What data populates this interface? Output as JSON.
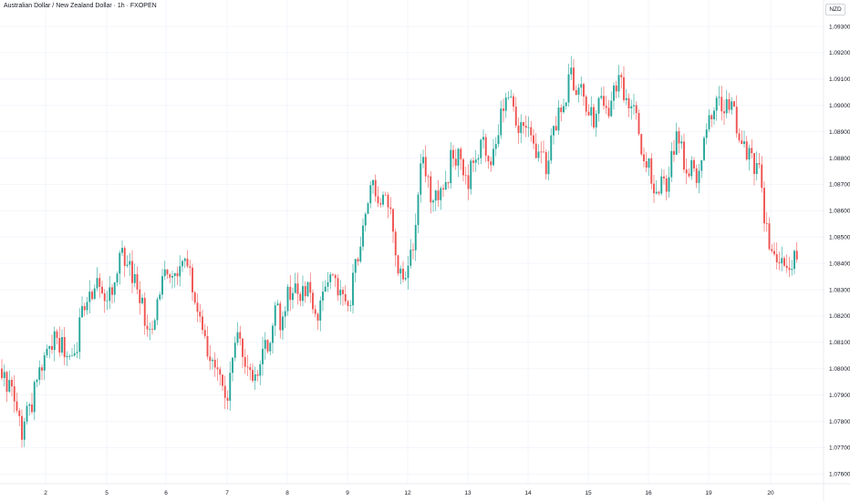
{
  "title": "Australian Dollar / New Zealand Dollar · 1h · FXOPEN",
  "currency": "NZD",
  "colors": {
    "up": "#26a69a",
    "down": "#ef5350",
    "grid": "#f0f3fa",
    "axis_text": "#131722"
  },
  "chart_data": {
    "type": "candlestick",
    "title": "Australian Dollar / New Zealand Dollar · 1h · FXOPEN",
    "ylim": [
      1.0755,
      1.0935
    ],
    "y_ticks": [
      1.093,
      1.092,
      1.091,
      1.09,
      1.089,
      1.088,
      1.087,
      1.086,
      1.085,
      1.084,
      1.083,
      1.082,
      1.081,
      1.08,
      1.079,
      1.078,
      1.077,
      1.076
    ],
    "y_tick_labels": [
      "1.09300",
      "1.09200",
      "1.09100",
      "1.09000",
      "1.08900",
      "1.08800",
      "1.08700",
      "1.08600",
      "1.08500",
      "1.08400",
      "1.08300",
      "1.08200",
      "1.08100",
      "1.08000",
      "1.07900",
      "1.07800",
      "1.07700",
      "1.07600"
    ],
    "x_tick_labels": [
      "2",
      "5",
      "6",
      "7",
      "8",
      "9",
      "12",
      "13",
      "14",
      "15",
      "16",
      "19",
      "20"
    ],
    "grid": true,
    "path_days": [
      {
        "label": "2",
        "closes": [
          1.0792,
          1.0776,
          1.0788,
          1.0801,
          1.0812,
          1.0808,
          1.0806,
          1.0826,
          1.0832,
          1.0824
        ]
      },
      {
        "label": "5",
        "closes": [
          1.0844,
          1.0831,
          1.0813,
          1.0838
        ]
      },
      {
        "label": "6",
        "closes": [
          1.0836,
          1.0845,
          1.0822,
          1.0808,
          1.08,
          1.0788
        ]
      },
      {
        "label": "7",
        "closes": [
          1.0806,
          1.0812,
          1.0805,
          1.0795,
          1.0798,
          1.081,
          1.0808,
          1.0822,
          1.0818,
          1.0828
        ]
      },
      {
        "label": "8",
        "closes": [
          1.0828,
          1.083,
          1.0817,
          1.0834,
          1.0831,
          1.082
        ]
      },
      {
        "label": "9",
        "closes": [
          1.0837,
          1.0844,
          1.0862,
          1.087,
          1.0864,
          1.0864,
          1.0862,
          1.0842,
          1.0838,
          1.0834
        ]
      },
      {
        "label": "12",
        "closes": [
          1.0855,
          1.0882,
          1.0868,
          1.0862,
          1.087,
          1.0882,
          1.088,
          1.0872
        ]
      },
      {
        "label": "13",
        "closes": [
          1.088,
          1.0887,
          1.0879,
          1.089,
          1.0904,
          1.0898,
          1.0892,
          1.0896
        ]
      },
      {
        "label": "14",
        "closes": [
          1.0885,
          1.088,
          1.0878,
          1.089,
          1.0896,
          1.09,
          1.0912,
          1.0904,
          1.0906,
          1.0898
        ]
      },
      {
        "label": "15",
        "closes": [
          1.0895,
          1.0904,
          1.0898,
          1.0908,
          1.0909,
          1.09,
          1.0898,
          1.0882,
          1.088
        ]
      },
      {
        "label": "16",
        "closes": [
          1.0862,
          1.0874,
          1.087,
          1.0885,
          1.0888,
          1.0876,
          1.0875,
          1.0874,
          1.0882,
          1.0895
        ]
      },
      {
        "label": "19",
        "closes": [
          1.0898,
          1.0902,
          1.09,
          1.0898,
          1.0886,
          1.0884,
          1.0878,
          1.0879,
          1.0858,
          1.0845
        ]
      },
      {
        "label": "20",
        "closes": [
          1.0838,
          1.0841
        ]
      }
    ]
  }
}
